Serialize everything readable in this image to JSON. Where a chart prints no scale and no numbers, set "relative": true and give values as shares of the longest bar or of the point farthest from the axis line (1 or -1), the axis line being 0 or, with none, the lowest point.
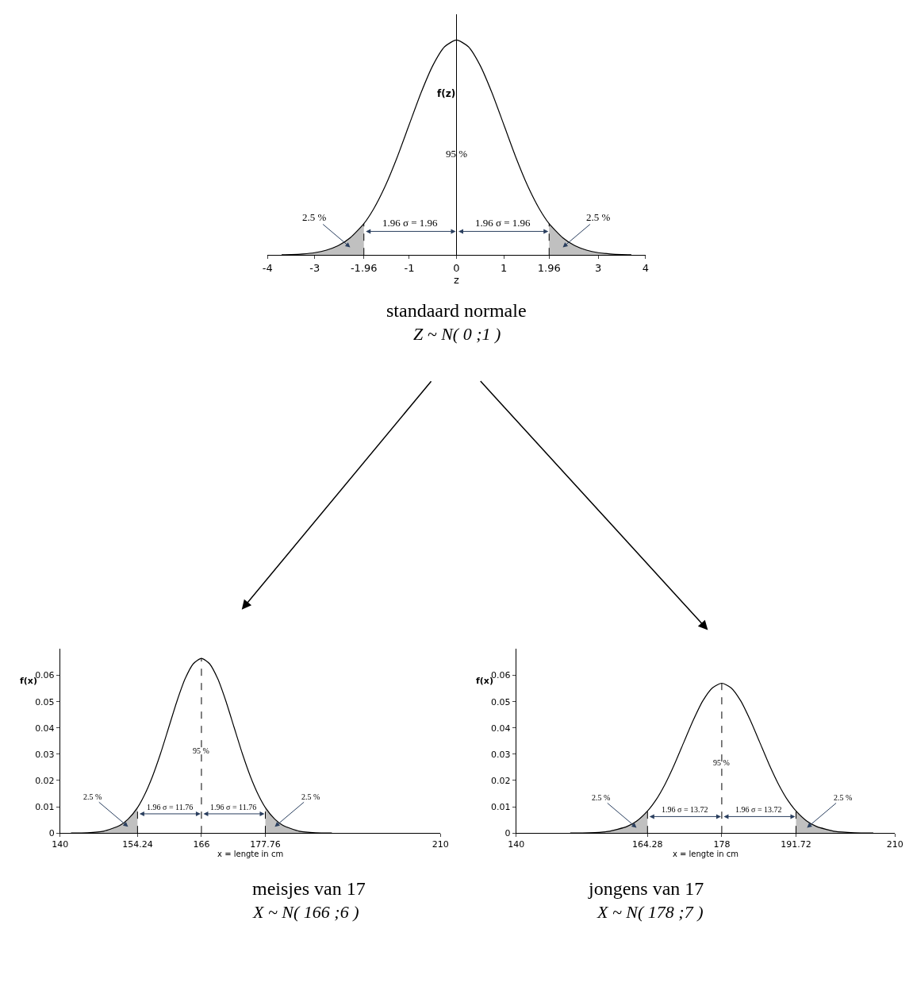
{
  "chart_data": [
    {
      "type": "line",
      "title": "standaard normale",
      "subtitle": "Z ~ N( 0 ;1 )",
      "xlabel": "z",
      "ylabel": "f(z)",
      "relative": true,
      "x": [
        -3.7,
        -3.5,
        -3.25,
        -3,
        -2.75,
        -2.5,
        -2.25,
        -1.96,
        -1.75,
        -1.5,
        -1.25,
        -1,
        -0.75,
        -0.5,
        -0.25,
        0,
        0.25,
        0.5,
        0.75,
        1,
        1.25,
        1.5,
        1.75,
        1.96,
        2.25,
        2.5,
        2.75,
        3,
        3.25,
        3.5,
        3.7
      ],
      "series": [
        {
          "color": "#000000",
          "values": [
            0.001,
            0.002,
            0.005,
            0.011,
            0.023,
            0.044,
            0.08,
            0.146,
            0.216,
            0.325,
            0.458,
            0.607,
            0.755,
            0.882,
            0.969,
            1,
            0.969,
            0.882,
            0.755,
            0.607,
            0.458,
            0.325,
            0.216,
            0.146,
            0.08,
            0.044,
            0.023,
            0.011,
            0.005,
            0.002,
            0.001
          ]
        },
        {
          "type": "area",
          "color": "#c0c0c0",
          "x": [
            -3.7,
            -3.5,
            -3.25,
            -3,
            -2.75,
            -2.5,
            -2.25,
            -1.96
          ],
          "values": [
            0.001,
            0.002,
            0.005,
            0.011,
            0.023,
            0.044,
            0.08,
            0.146
          ]
        },
        {
          "type": "area",
          "color": "#c0c0c0",
          "x": [
            1.96,
            2.25,
            2.5,
            2.75,
            3,
            3.25,
            3.5,
            3.7
          ],
          "values": [
            0.146,
            0.08,
            0.044,
            0.023,
            0.011,
            0.005,
            0.002,
            0.001
          ]
        }
      ],
      "xlim": [
        -4,
        4
      ],
      "xticks": [
        -4,
        -3,
        -1.96,
        -1,
        0,
        1,
        1.96,
        3,
        4
      ],
      "ref_lines": [
        {
          "axis": "x",
          "value": -1.96,
          "line_style": "dashed"
        },
        {
          "axis": "x",
          "value": 1.96,
          "line_style": "dashed"
        }
      ],
      "annotations": [
        "95 %",
        "2.5 %",
        "2.5 %",
        "1.96 σ = 1.96",
        "1.96 σ = 1.96"
      ]
    },
    {
      "type": "line",
      "title": "meisjes van 17",
      "subtitle": "X ~ N( 166 ;6 )",
      "xlabel": "x = lengte in cm",
      "ylabel": "f(x)",
      "x": [
        142,
        145,
        148,
        151,
        152.5,
        154.24,
        155.5,
        157,
        158.5,
        160,
        161.5,
        163,
        164.5,
        166,
        167.5,
        169,
        170.5,
        172,
        173.5,
        175,
        176.5,
        177.76,
        179.5,
        181,
        184,
        187,
        190
      ],
      "series": [
        {
          "color": "#000000",
          "values": [
            0.0,
            0.0001,
            0.0007,
            0.0029,
            0.0053,
            0.0097,
            0.0144,
            0.0216,
            0.0304,
            0.0403,
            0.0502,
            0.0587,
            0.0644,
            0.0665,
            0.0644,
            0.0587,
            0.0502,
            0.0403,
            0.0304,
            0.0216,
            0.0144,
            0.0097,
            0.0053,
            0.0029,
            0.0007,
            0.0001,
            0.0
          ]
        },
        {
          "type": "area",
          "color": "#c0c0c0",
          "x": [
            142,
            145,
            148,
            151,
            152.5,
            154.24
          ],
          "values": [
            0.0,
            0.0001,
            0.0007,
            0.0029,
            0.0053,
            0.0097
          ]
        },
        {
          "type": "area",
          "color": "#c0c0c0",
          "x": [
            177.76,
            179.5,
            181,
            184,
            187,
            190
          ],
          "values": [
            0.0097,
            0.0053,
            0.0029,
            0.0007,
            0.0001,
            0.0
          ]
        }
      ],
      "xlim": [
        140,
        210
      ],
      "xticks": [
        140,
        154.24,
        166,
        177.76,
        210
      ],
      "ylim": [
        0,
        0.07
      ],
      "yticks": [
        0,
        0.01,
        0.02,
        0.03,
        0.04,
        0.05,
        0.06
      ],
      "ref_lines": [
        {
          "axis": "x",
          "value": 154.24,
          "line_style": "dashed"
        },
        {
          "axis": "x",
          "value": 166,
          "line_style": "dashed"
        },
        {
          "axis": "x",
          "value": 177.76,
          "line_style": "dashed"
        }
      ],
      "annotations": [
        "95 %",
        "2.5 %",
        "2.5 %",
        "1.96 σ = 11.76",
        "1.96 σ = 11.76"
      ]
    },
    {
      "type": "line",
      "title": "jongens van 17",
      "subtitle": "X ~ N( 178 ;7 )",
      "xlabel": "x = lengte in cm",
      "ylabel": "f(x)",
      "x": [
        150,
        153.5,
        157,
        160.5,
        162.25,
        164.28,
        165.75,
        167.5,
        169.25,
        171,
        172.75,
        174.5,
        176.25,
        178,
        179.75,
        181.5,
        183.25,
        185,
        186.75,
        188.5,
        190.25,
        191.72,
        193.75,
        195.5,
        199,
        202.5,
        206
      ],
      "series": [
        {
          "color": "#000000",
          "values": [
            0.0,
            0.0001,
            0.0006,
            0.0025,
            0.0045,
            0.0084,
            0.0123,
            0.0185,
            0.0261,
            0.0346,
            0.043,
            0.0503,
            0.0552,
            0.057,
            0.0552,
            0.0503,
            0.043,
            0.0346,
            0.0261,
            0.0185,
            0.0123,
            0.0084,
            0.0045,
            0.0025,
            0.0006,
            0.0001,
            0.0
          ]
        },
        {
          "type": "area",
          "color": "#c0c0c0",
          "x": [
            150,
            153.5,
            157,
            160.5,
            162.25,
            164.28
          ],
          "values": [
            0.0,
            0.0001,
            0.0006,
            0.0025,
            0.0045,
            0.0084
          ]
        },
        {
          "type": "area",
          "color": "#c0c0c0",
          "x": [
            191.72,
            193.75,
            195.5,
            199,
            202.5,
            206
          ],
          "values": [
            0.0084,
            0.0045,
            0.0025,
            0.0006,
            0.0001,
            0.0
          ]
        }
      ],
      "xlim": [
        140,
        210
      ],
      "xticks": [
        140,
        164.28,
        178,
        191.72,
        210
      ],
      "ylim": [
        0,
        0.07
      ],
      "yticks": [
        0,
        0.01,
        0.02,
        0.03,
        0.04,
        0.05,
        0.06
      ],
      "ref_lines": [
        {
          "axis": "x",
          "value": 164.28,
          "line_style": "dashed"
        },
        {
          "axis": "x",
          "value": 178,
          "line_style": "dashed"
        },
        {
          "axis": "x",
          "value": 191.72,
          "line_style": "dashed"
        }
      ],
      "annotations": [
        "95 %",
        "2.5 %",
        "2.5 %",
        "1.96 σ = 13.72",
        "1.96 σ = 13.72"
      ]
    }
  ]
}
